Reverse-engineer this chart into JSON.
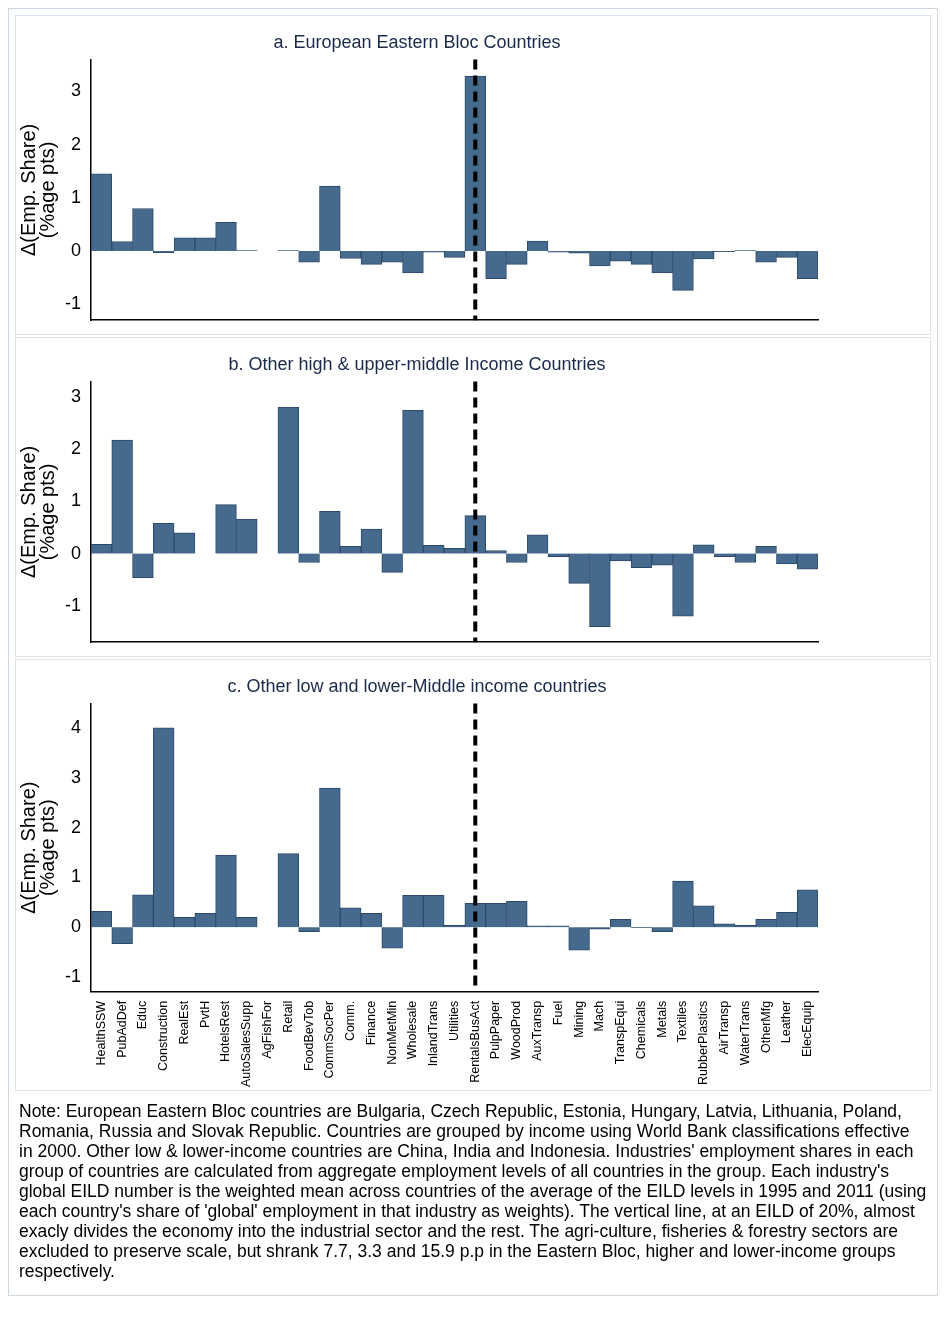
{
  "chart_data": [
    {
      "type": "bar",
      "title": "a. European Eastern Bloc Countries",
      "ylabel": "Δ(Emp. Share)\n(%age pts)",
      "categories": [
        "HealthSSW",
        "PubAdDef",
        "Educ",
        "Construction",
        "RealEst",
        "PvtH",
        "HotelsRest",
        "AutoSalesSupp",
        "AgFishFor",
        "Retail",
        "FoodBevTob",
        "CommSocPer",
        "Comm.",
        "Finance",
        "NonMetMin",
        "Wholesale",
        "InlandTrans",
        "Utilities",
        "RentalsBusAct",
        "PulpPaper",
        "WoodProd",
        "AuxTransp",
        "Fuel",
        "Mining",
        "Mach",
        "TranspEqui",
        "Chemicals",
        "Metals",
        "Textiles",
        "RubberPlastics",
        "AirTransp",
        "WaterTrans",
        "OtherMfg",
        "Leather",
        "ElecEquip"
      ],
      "values": [
        1.45,
        0.18,
        0.8,
        -0.03,
        0.25,
        0.25,
        0.54,
        0.01,
        null,
        0.01,
        -0.21,
        1.22,
        -0.14,
        -0.25,
        -0.21,
        -0.41,
        -0.02,
        -0.12,
        3.29,
        -0.52,
        -0.25,
        0.19,
        -0.02,
        -0.04,
        -0.28,
        -0.19,
        -0.25,
        -0.41,
        -0.74,
        -0.15,
        -0.01,
        0.01,
        -0.21,
        -0.12,
        -0.52
      ],
      "color": "#456a8e",
      "ylim": [
        -1.3,
        3.6
      ],
      "yticks": [
        -1,
        0,
        1,
        2,
        3
      ],
      "grid": false,
      "legend": false,
      "tick_labels": "y",
      "ref_lines": [
        {
          "axis": "x",
          "value": "RentalsBusAct",
          "color": "#000000",
          "line_style": "dashed"
        }
      ]
    },
    {
      "type": "bar",
      "title": "b. Other high & upper-middle Income Countries",
      "ylabel": "Δ(Emp. Share)\n(%age pts)",
      "categories": [
        "HealthSSW",
        "PubAdDef",
        "Educ",
        "Construction",
        "RealEst",
        "PvtH",
        "HotelsRest",
        "AutoSalesSupp",
        "AgFishFor",
        "Retail",
        "FoodBevTob",
        "CommSocPer",
        "Comm.",
        "Finance",
        "NonMetMin",
        "Wholesale",
        "InlandTrans",
        "Utilities",
        "RentalsBusAct",
        "PulpPaper",
        "WoodProd",
        "AuxTransp",
        "Fuel",
        "Mining",
        "Mach",
        "TranspEqui",
        "Chemicals",
        "Metals",
        "Textiles",
        "RubberPlastics",
        "AirTransp",
        "WaterTrans",
        "OtherMfg",
        "Leather",
        "ElecEquip"
      ],
      "values": [
        0.18,
        2.18,
        -0.46,
        0.58,
        0.4,
        0,
        0.94,
        0.66,
        null,
        2.81,
        -0.17,
        0.81,
        0.14,
        0.47,
        -0.36,
        2.75,
        0.16,
        0.1,
        0.73,
        0.06,
        -0.17,
        0.36,
        -0.06,
        -0.57,
        -1.4,
        -0.14,
        -0.27,
        -0.22,
        -1.2,
        0.17,
        -0.06,
        -0.17,
        0.14,
        -0.2,
        -0.3
      ],
      "color": "#456a8e",
      "ylim": [
        -1.7,
        3.3
      ],
      "yticks": [
        -1,
        0,
        1,
        2,
        3
      ],
      "grid": false,
      "legend": false,
      "tick_labels": "y",
      "ref_lines": [
        {
          "axis": "x",
          "value": "RentalsBusAct",
          "color": "#000000",
          "line_style": "dashed"
        }
      ]
    },
    {
      "type": "bar",
      "title": "c. Other low and lower-Middle income countries",
      "ylabel": "Δ(Emp. Share)\n(%age pts)",
      "categories": [
        "HealthSSW",
        "PubAdDef",
        "Educ",
        "Construction",
        "RealEst",
        "PvtH",
        "HotelsRest",
        "AutoSalesSupp",
        "AgFishFor",
        "Retail",
        "FoodBevTob",
        "CommSocPer",
        "Comm.",
        "Finance",
        "NonMetMin",
        "Wholesale",
        "InlandTrans",
        "Utilities",
        "RentalsBusAct",
        "PulpPaper",
        "WoodProd",
        "AuxTransp",
        "Fuel",
        "Mining",
        "Mach",
        "TranspEqui",
        "Chemicals",
        "Metals",
        "Textiles",
        "RubberPlastics",
        "AirTransp",
        "WaterTrans",
        "OtherMfg",
        "Leather",
        "ElecEquip"
      ],
      "values": [
        0.32,
        -0.33,
        0.65,
        4.01,
        0.2,
        0.28,
        1.45,
        0.2,
        null,
        1.48,
        -0.09,
        2.8,
        0.39,
        0.28,
        -0.42,
        0.64,
        0.64,
        0.04,
        0.48,
        0.48,
        0.52,
        0.03,
        0.03,
        -0.46,
        -0.04,
        0.16,
        -0.01,
        -0.09,
        0.93,
        0.43,
        0.07,
        0.04,
        0.16,
        0.3,
        0.75
      ],
      "color": "#456a8e",
      "ylim": [
        -1.3,
        4.5
      ],
      "yticks": [
        -1,
        0,
        1,
        2,
        3,
        4
      ],
      "grid": false,
      "legend": false,
      "ref_lines": [
        {
          "axis": "x",
          "value": "RentalsBusAct",
          "color": "#000000",
          "line_style": "dashed"
        }
      ],
      "annotations": [
        "Note: European Eastern Bloc countries are Bulgaria, Czech Republic, Estonia, Hungary, Latvia, Lithuania, Poland, Romania, Russia and Slovak Republic. Countries are grouped by income using World Bank classifications effective in 2000. Other low & lower-income countries are China, India and Indonesia. Industries' employment shares in each group of countries are calculated from aggregate employment levels of all countries in the group. Each industry's global EILD number is the weighted mean across countries of the average of the EILD levels in 1995 and 2011 (using each country's share of 'global' employment in that industry as weights). The vertical line, at an EILD of 20%, almost exacly divides the economy into the industrial sector and the rest. The agri-culture, fisheries & forestry sectors are excluded to preserve scale, but shrank 7.7, 3.3 and 15.9 p.p in the Eastern Bloc, higher and lower-income groups respectively."
      ]
    }
  ]
}
